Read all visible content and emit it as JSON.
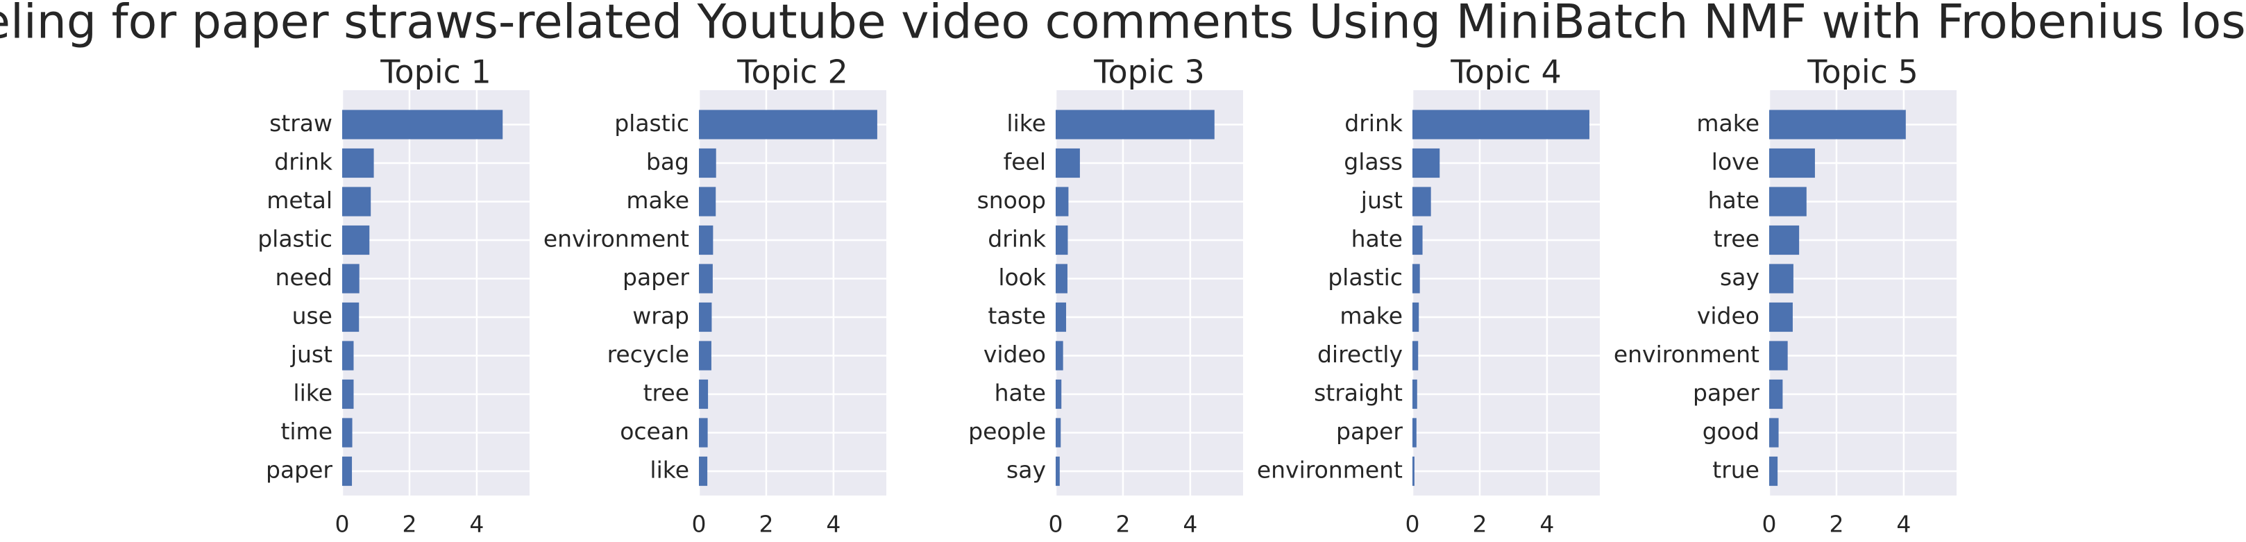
{
  "title": "Topic modeling for paper straws-related Youtube video comments Using MiniBatch NMF with Frobenius loss function",
  "chart_data": [
    {
      "type": "barh",
      "title": "Topic 1",
      "color": "#4c72b0",
      "xlim": [
        0,
        5.57
      ],
      "xticks": [
        0,
        2,
        4
      ],
      "grid": true,
      "categories": [
        "straw",
        "drink",
        "metal",
        "plastic",
        "need",
        "use",
        "just",
        "like",
        "time",
        "paper"
      ],
      "values": [
        4.77,
        0.94,
        0.85,
        0.81,
        0.51,
        0.5,
        0.34,
        0.34,
        0.3,
        0.29
      ]
    },
    {
      "type": "barh",
      "title": "Topic 2",
      "color": "#4c72b0",
      "xlim": [
        0,
        5.57
      ],
      "xticks": [
        0,
        2,
        4
      ],
      "grid": true,
      "categories": [
        "plastic",
        "bag",
        "make",
        "environment",
        "paper",
        "wrap",
        "recycle",
        "tree",
        "ocean",
        "like"
      ],
      "values": [
        5.3,
        0.51,
        0.5,
        0.42,
        0.41,
        0.38,
        0.37,
        0.27,
        0.26,
        0.25
      ]
    },
    {
      "type": "barh",
      "title": "Topic 3",
      "color": "#4c72b0",
      "xlim": [
        0,
        5.57
      ],
      "xticks": [
        0,
        2,
        4
      ],
      "grid": true,
      "categories": [
        "like",
        "feel",
        "snoop",
        "drink",
        "look",
        "taste",
        "video",
        "hate",
        "people",
        "say"
      ],
      "values": [
        4.72,
        0.72,
        0.38,
        0.36,
        0.35,
        0.31,
        0.22,
        0.17,
        0.15,
        0.12
      ]
    },
    {
      "type": "barh",
      "title": "Topic 4",
      "color": "#4c72b0",
      "xlim": [
        0,
        5.57
      ],
      "xticks": [
        0,
        2,
        4
      ],
      "grid": true,
      "categories": [
        "drink",
        "glass",
        "just",
        "hate",
        "plastic",
        "make",
        "directly",
        "straight",
        "paper",
        "environment"
      ],
      "values": [
        5.26,
        0.81,
        0.55,
        0.3,
        0.22,
        0.19,
        0.17,
        0.14,
        0.12,
        0.06
      ]
    },
    {
      "type": "barh",
      "title": "Topic 5",
      "color": "#4c72b0",
      "xlim": [
        0,
        5.57
      ],
      "xticks": [
        0,
        2,
        4
      ],
      "grid": true,
      "categories": [
        "make",
        "love",
        "hate",
        "tree",
        "say",
        "video",
        "environment",
        "paper",
        "good",
        "true"
      ],
      "values": [
        4.06,
        1.36,
        1.11,
        0.89,
        0.72,
        0.7,
        0.55,
        0.4,
        0.28,
        0.25
      ]
    }
  ]
}
